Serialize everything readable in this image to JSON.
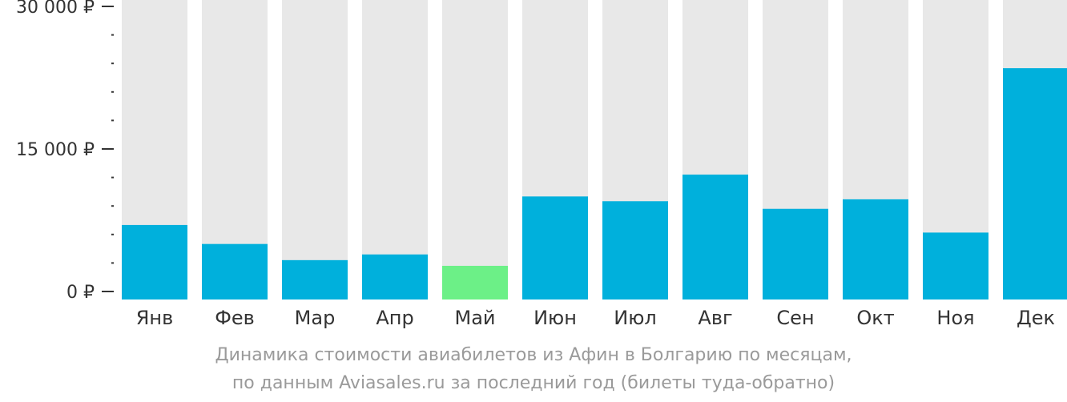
{
  "chart_data": {
    "type": "bar",
    "categories": [
      "Янв",
      "Фев",
      "Мар",
      "Апр",
      "Май",
      "Июн",
      "Июл",
      "Авг",
      "Сен",
      "Окт",
      "Ноя",
      "Дек"
    ],
    "values": [
      7000,
      5000,
      3300,
      3900,
      2700,
      10000,
      9500,
      12300,
      8700,
      9700,
      6200,
      23500
    ],
    "highlight_index": 4,
    "ylim": [
      0,
      30000
    ],
    "yticks": [
      0,
      15000,
      30000
    ],
    "ytick_labels": [
      "0 ₽",
      "15 000 ₽",
      "30 000 ₽"
    ],
    "grid": false,
    "caption": [
      "Динамика стоимости авиабилетов из Афин в Болгарию по месяцам,",
      "по данным Aviasales.ru за последний год (билеты туда-обратно)"
    ],
    "colors": {
      "bar": "#00b0dc",
      "highlight": "#6cf087",
      "track": "#e8e8e8",
      "axis_text": "#333333",
      "caption": "#9a9a9a"
    }
  }
}
